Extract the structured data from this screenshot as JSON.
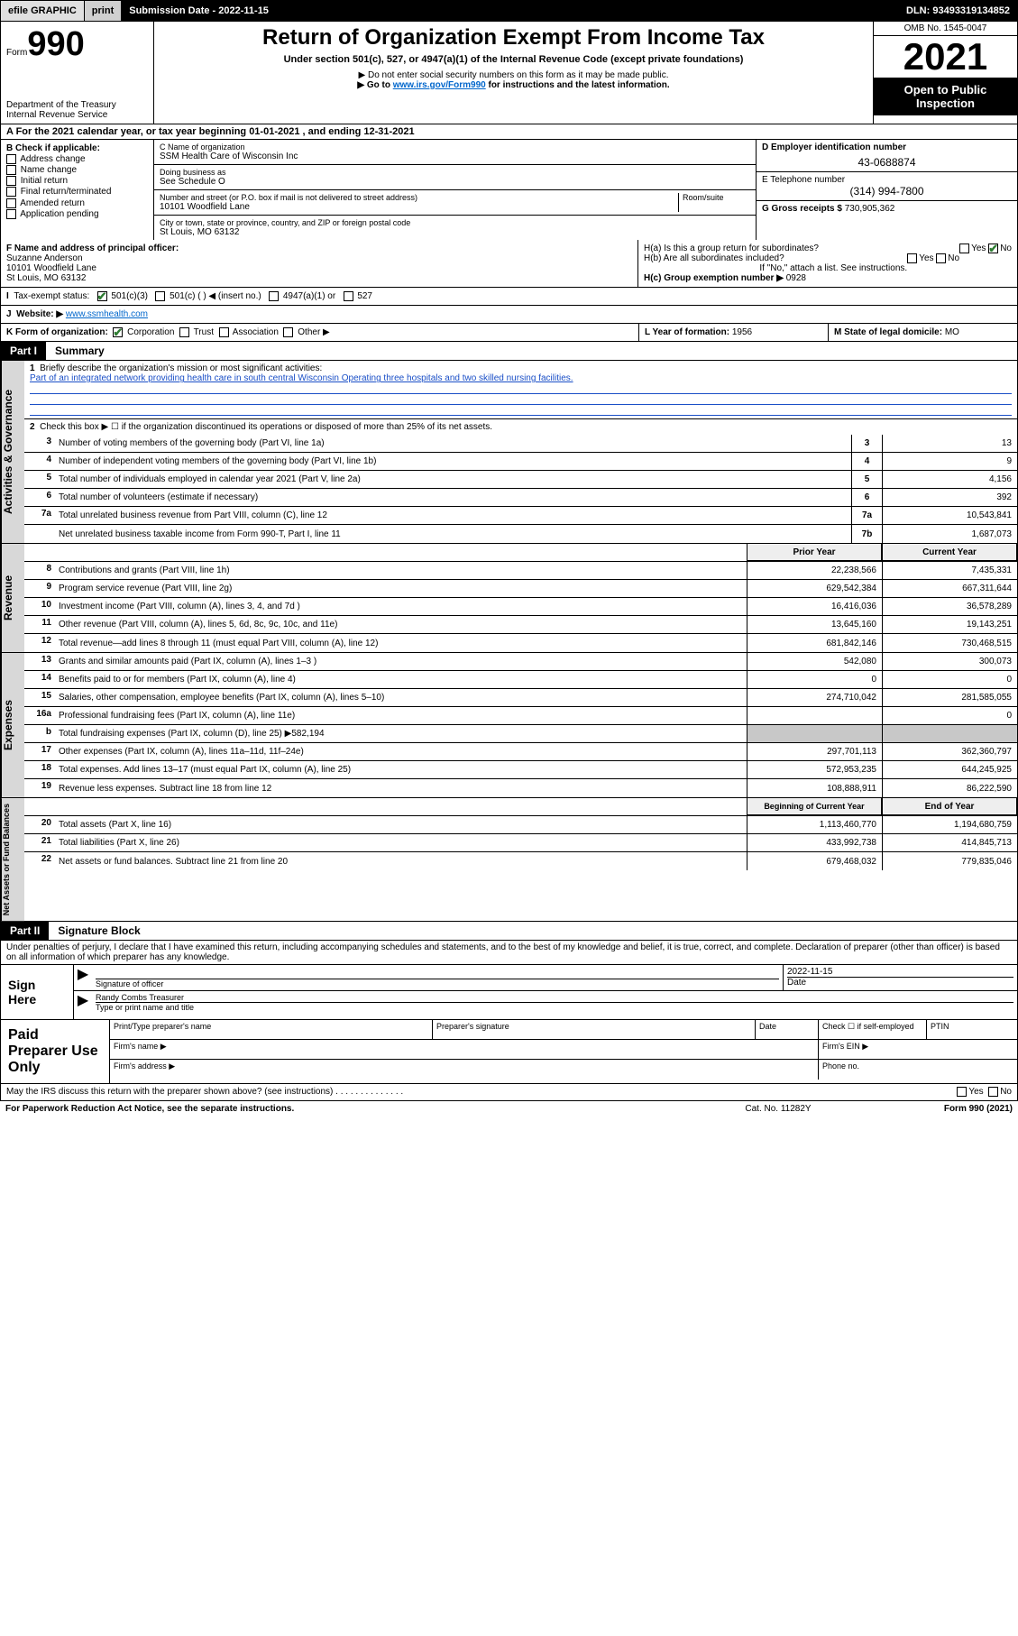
{
  "topbar": {
    "efile": "efile GRAPHIC",
    "print": "print",
    "submission": "Submission Date - 2022-11-15",
    "dln": "DLN: 93493319134852"
  },
  "header": {
    "form_prefix": "Form",
    "form_num": "990",
    "dept": "Department of the Treasury",
    "irs": "Internal Revenue Service",
    "title": "Return of Organization Exempt From Income Tax",
    "sub": "Under section 501(c), 527, or 4947(a)(1) of the Internal Revenue Code (except private foundations)",
    "note1": "▶ Do not enter social security numbers on this form as it may be made public.",
    "note2_pre": "▶ Go to ",
    "note2_link": "www.irs.gov/Form990",
    "note2_post": " for instructions and the latest information.",
    "omb": "OMB No. 1545-0047",
    "year": "2021",
    "open": "Open to Public Inspection"
  },
  "rowA": "A For the 2021 calendar year, or tax year beginning 01-01-2021   , and ending 12-31-2021",
  "blockB": {
    "title": "B Check if applicable:",
    "items": [
      "Address change",
      "Name change",
      "Initial return",
      "Final return/terminated",
      "Amended return",
      "Application pending"
    ]
  },
  "blockC": {
    "name_lbl": "C Name of organization",
    "name": "SSM Health Care of Wisconsin Inc",
    "dba_lbl": "Doing business as",
    "dba": "See Schedule O",
    "addr_lbl": "Number and street (or P.O. box if mail is not delivered to street address)",
    "room_lbl": "Room/suite",
    "addr": "10101 Woodfield Lane",
    "city_lbl": "City or town, state or province, country, and ZIP or foreign postal code",
    "city": "St Louis, MO  63132"
  },
  "blockD": {
    "lbl": "D Employer identification number",
    "val": "43-0688874"
  },
  "blockE": {
    "lbl": "E Telephone number",
    "val": "(314) 994-7800"
  },
  "blockG": {
    "lbl": "G Gross receipts $",
    "val": "730,905,362"
  },
  "blockF": {
    "lbl": "F Name and address of principal officer:",
    "name": "Suzanne Anderson",
    "addr1": "10101 Woodfield Lane",
    "addr2": "St Louis, MO  63132"
  },
  "blockH": {
    "ha": "H(a)  Is this a group return for subordinates?",
    "ha_yes": "Yes",
    "ha_no": "No",
    "hb": "H(b)  Are all subordinates included?",
    "hb_note": "If \"No,\" attach a list. See instructions.",
    "hc": "H(c)  Group exemption number ▶",
    "hc_val": "0928"
  },
  "rowI": {
    "lbl": "Tax-exempt status:",
    "opts": [
      "501(c)(3)",
      "501(c) (   ) ◀ (insert no.)",
      "4947(a)(1) or",
      "527"
    ]
  },
  "rowJ": {
    "lbl": "Website: ▶",
    "val": "www.ssmhealth.com"
  },
  "rowK": {
    "lbl": "K Form of organization:",
    "opts": [
      "Corporation",
      "Trust",
      "Association",
      "Other ▶"
    ],
    "L_lbl": "L Year of formation:",
    "L_val": "1956",
    "M_lbl": "M State of legal domicile:",
    "M_val": "MO"
  },
  "part1": {
    "num": "Part I",
    "title": "Summary"
  },
  "summary_top": {
    "l1": "Briefly describe the organization's mission or most significant activities:",
    "l1text": "Part of an integrated network providing health care in south central Wisconsin Operating three hospitals and two skilled nursing facilities.",
    "l2": "Check this box ▶ ☐  if the organization discontinued its operations or disposed of more than 25% of its net assets."
  },
  "gov_lines": [
    {
      "n": "3",
      "d": "Number of voting members of the governing body (Part VI, line 1a)",
      "b": "3",
      "v": "13"
    },
    {
      "n": "4",
      "d": "Number of independent voting members of the governing body (Part VI, line 1b)",
      "b": "4",
      "v": "9"
    },
    {
      "n": "5",
      "d": "Total number of individuals employed in calendar year 2021 (Part V, line 2a)",
      "b": "5",
      "v": "4,156"
    },
    {
      "n": "6",
      "d": "Total number of volunteers (estimate if necessary)",
      "b": "6",
      "v": "392"
    },
    {
      "n": "7a",
      "d": "Total unrelated business revenue from Part VIII, column (C), line 12",
      "b": "7a",
      "v": "10,543,841"
    },
    {
      "n": "",
      "d": "Net unrelated business taxable income from Form 990-T, Part I, line 11",
      "b": "7b",
      "v": "1,687,073"
    }
  ],
  "col_hdr": {
    "prior": "Prior Year",
    "current": "Current Year"
  },
  "rev_lines": [
    {
      "n": "8",
      "d": "Contributions and grants (Part VIII, line 1h)",
      "p": "22,238,566",
      "c": "7,435,331"
    },
    {
      "n": "9",
      "d": "Program service revenue (Part VIII, line 2g)",
      "p": "629,542,384",
      "c": "667,311,644"
    },
    {
      "n": "10",
      "d": "Investment income (Part VIII, column (A), lines 3, 4, and 7d )",
      "p": "16,416,036",
      "c": "36,578,289"
    },
    {
      "n": "11",
      "d": "Other revenue (Part VIII, column (A), lines 5, 6d, 8c, 9c, 10c, and 11e)",
      "p": "13,645,160",
      "c": "19,143,251"
    },
    {
      "n": "12",
      "d": "Total revenue—add lines 8 through 11 (must equal Part VIII, column (A), line 12)",
      "p": "681,842,146",
      "c": "730,468,515"
    }
  ],
  "exp_lines": [
    {
      "n": "13",
      "d": "Grants and similar amounts paid (Part IX, column (A), lines 1–3 )",
      "p": "542,080",
      "c": "300,073"
    },
    {
      "n": "14",
      "d": "Benefits paid to or for members (Part IX, column (A), line 4)",
      "p": "0",
      "c": "0"
    },
    {
      "n": "15",
      "d": "Salaries, other compensation, employee benefits (Part IX, column (A), lines 5–10)",
      "p": "274,710,042",
      "c": "281,585,055"
    },
    {
      "n": "16a",
      "d": "Professional fundraising fees (Part IX, column (A), line 11e)",
      "p": "",
      "c": "0"
    },
    {
      "n": "b",
      "d": "Total fundraising expenses (Part IX, column (D), line 25) ▶582,194",
      "p": "",
      "c": "",
      "shade": true
    },
    {
      "n": "17",
      "d": "Other expenses (Part IX, column (A), lines 11a–11d, 11f–24e)",
      "p": "297,701,113",
      "c": "362,360,797"
    },
    {
      "n": "18",
      "d": "Total expenses. Add lines 13–17 (must equal Part IX, column (A), line 25)",
      "p": "572,953,235",
      "c": "644,245,925"
    },
    {
      "n": "19",
      "d": "Revenue less expenses. Subtract line 18 from line 12",
      "p": "108,888,911",
      "c": "86,222,590"
    }
  ],
  "na_hdr": {
    "begin": "Beginning of Current Year",
    "end": "End of Year"
  },
  "na_lines": [
    {
      "n": "20",
      "d": "Total assets (Part X, line 16)",
      "p": "1,113,460,770",
      "c": "1,194,680,759"
    },
    {
      "n": "21",
      "d": "Total liabilities (Part X, line 26)",
      "p": "433,992,738",
      "c": "414,845,713"
    },
    {
      "n": "22",
      "d": "Net assets or fund balances. Subtract line 21 from line 20",
      "p": "679,468,032",
      "c": "779,835,046"
    }
  ],
  "part2": {
    "num": "Part II",
    "title": "Signature Block"
  },
  "sig": {
    "decl": "Under penalties of perjury, I declare that I have examined this return, including accompanying schedules and statements, and to the best of my knowledge and belief, it is true, correct, and complete. Declaration of preparer (other than officer) is based on all information of which preparer has any knowledge.",
    "here": "Sign Here",
    "sig_lbl": "Signature of officer",
    "date_lbl": "Date",
    "date": "2022-11-15",
    "name": "Randy Combs  Treasurer",
    "name_lbl": "Type or print name and title"
  },
  "paid": {
    "title": "Paid Preparer Use Only",
    "h1": "Print/Type preparer's name",
    "h2": "Preparer's signature",
    "h3": "Date",
    "h4": "Check ☐ if self-employed",
    "h5": "PTIN",
    "r2a": "Firm's name   ▶",
    "r2b": "Firm's EIN ▶",
    "r3a": "Firm's address ▶",
    "r3b": "Phone no."
  },
  "footer": {
    "q": "May the IRS discuss this return with the preparer shown above? (see instructions)",
    "yes": "Yes",
    "no": "No"
  },
  "bottom": {
    "l": "For Paperwork Reduction Act Notice, see the separate instructions.",
    "m": "Cat. No. 11282Y",
    "r": "Form 990 (2021)"
  },
  "vlabels": {
    "gov": "Activities & Governance",
    "rev": "Revenue",
    "exp": "Expenses",
    "na": "Net Assets or Fund Balances"
  }
}
